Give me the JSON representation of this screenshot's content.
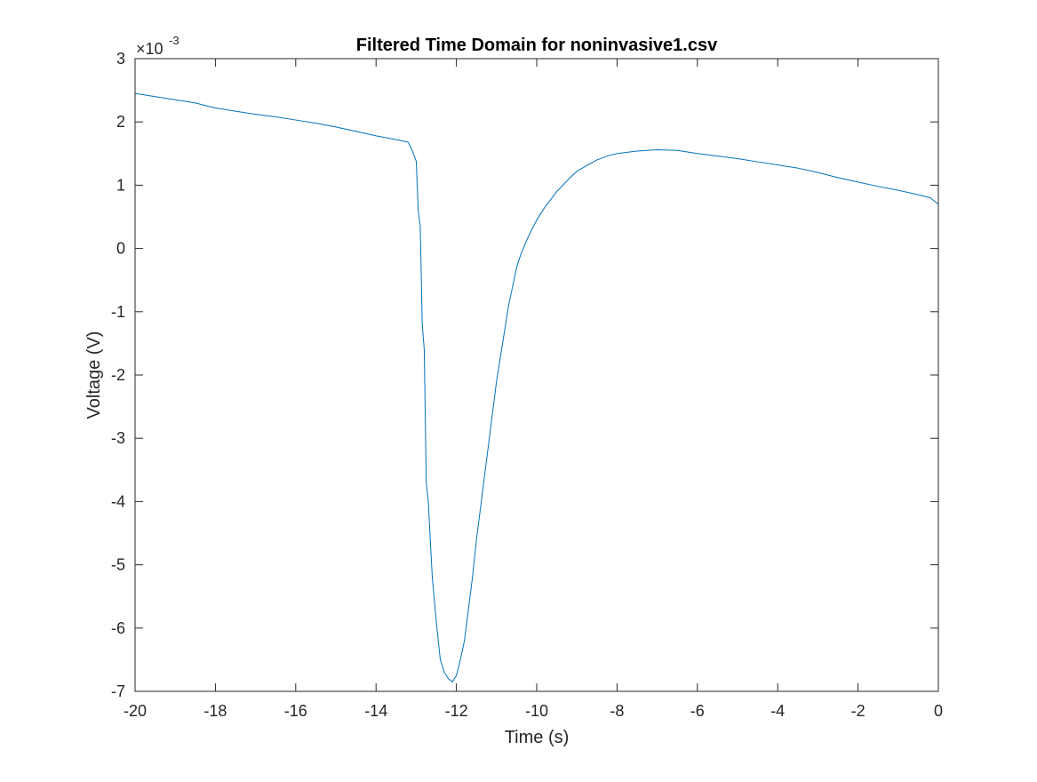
{
  "chart_data": {
    "type": "line",
    "title": "Filtered Time Domain for noninvasive1.csv",
    "xlabel": "Time (s)",
    "ylabel": "Voltage (V)",
    "xlim": [
      -20,
      0
    ],
    "ylim": [
      -7,
      3
    ],
    "y_exponent": {
      "base": "×10",
      "power": "-3"
    },
    "grid": false,
    "legend": "none",
    "x_ticks": [
      -20,
      -18,
      -16,
      -14,
      -12,
      -10,
      -8,
      -6,
      -4,
      -2,
      0
    ],
    "x_tick_labels": [
      "-20",
      "-18",
      "-16",
      "-14",
      "-12",
      "-10",
      "-8",
      "-6",
      "-4",
      "-2",
      "0"
    ],
    "y_ticks": [
      -7,
      -6,
      -5,
      -4,
      -3,
      -2,
      -1,
      0,
      1,
      2,
      3
    ],
    "y_tick_labels": [
      "-7",
      "-6",
      "-5",
      "-4",
      "-3",
      "-2",
      "-1",
      "0",
      "1",
      "2",
      "3"
    ],
    "series": [
      {
        "color": "#0072bd",
        "x": [
          -20,
          -19.5,
          -19,
          -18.5,
          -18,
          -17.5,
          -17,
          -16.5,
          -16,
          -15.5,
          -15,
          -14.5,
          -14,
          -13.5,
          -13.2,
          -13.1,
          -13.0,
          -12.95,
          -12.9,
          -12.85,
          -12.8,
          -12.75,
          -12.7,
          -12.6,
          -12.5,
          -12.4,
          -12.3,
          -12.2,
          -12.1,
          -12.0,
          -11.9,
          -11.8,
          -11.7,
          -11.6,
          -11.5,
          -11.4,
          -11.3,
          -11.2,
          -11.1,
          -11.0,
          -10.9,
          -10.8,
          -10.7,
          -10.6,
          -10.5,
          -10.4,
          -10.2,
          -10.0,
          -9.8,
          -9.5,
          -9.2,
          -9.0,
          -8.7,
          -8.5,
          -8.2,
          -8.0,
          -7.5,
          -7.0,
          -6.5,
          -6.0,
          -5.5,
          -5.0,
          -4.5,
          -4.0,
          -3.5,
          -3.0,
          -2.5,
          -2.0,
          -1.5,
          -1.0,
          -0.5,
          -0.2,
          0
        ],
        "y": [
          2.45,
          2.4,
          2.35,
          2.3,
          2.22,
          2.17,
          2.12,
          2.08,
          2.03,
          1.98,
          1.92,
          1.85,
          1.78,
          1.72,
          1.68,
          1.55,
          1.38,
          0.6,
          0.35,
          -1.2,
          -1.6,
          -3.7,
          -4.0,
          -5.2,
          -5.9,
          -6.5,
          -6.7,
          -6.8,
          -6.85,
          -6.75,
          -6.5,
          -6.2,
          -5.7,
          -5.2,
          -4.6,
          -4.1,
          -3.6,
          -3.1,
          -2.6,
          -2.1,
          -1.7,
          -1.3,
          -0.9,
          -0.6,
          -0.3,
          -0.1,
          0.2,
          0.45,
          0.65,
          0.9,
          1.1,
          1.22,
          1.33,
          1.4,
          1.47,
          1.5,
          1.54,
          1.56,
          1.55,
          1.5,
          1.46,
          1.42,
          1.37,
          1.32,
          1.27,
          1.2,
          1.12,
          1.05,
          0.98,
          0.92,
          0.85,
          0.8,
          0.7
        ]
      }
    ]
  }
}
